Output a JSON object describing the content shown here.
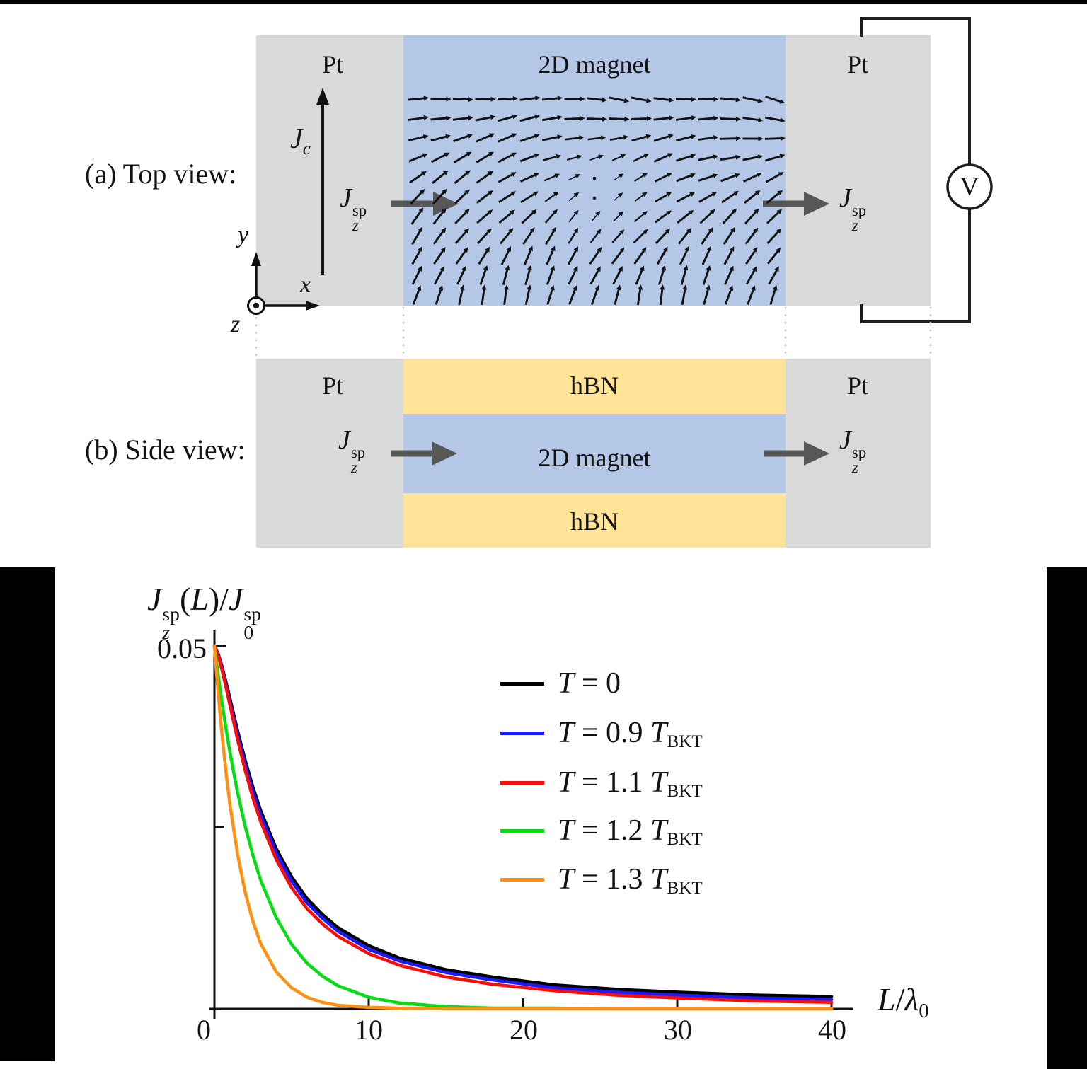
{
  "captions": {
    "a": "(a) Top view:",
    "b": "(b) Side view:"
  },
  "diagram": {
    "pt_label": "Pt",
    "magnet_label": "2D magnet",
    "hbn_label": "hBN",
    "voltmeter_label": "V",
    "math": {
      "J": "J",
      "sp": "sp",
      "z": "z",
      "c": "c"
    },
    "axes": {
      "x": "x",
      "y": "y",
      "z": "z"
    },
    "colors": {
      "pt": "#d9d9d9",
      "magnet": "#b4c7e7",
      "hbn": "#ffe498",
      "wire": "#1f1f1f",
      "spin_arrow": "#111111",
      "current_arrow": "#575757"
    },
    "spin_texture": {
      "cols": 17,
      "rows": 11,
      "note": "in-plane spin vector field with out-of-plane core dots"
    }
  },
  "chart_data": {
    "type": "line",
    "title": "",
    "ylabel": "Jz^sp(L)/J0^sp",
    "xlabel": "L/lambda_0",
    "ylabel_parts": {
      "J": "J",
      "sp": "sp",
      "z": "z",
      "open": "(",
      "L": "L",
      "close": ")/",
      "zero": "0"
    },
    "xlabel_parts": {
      "L": "L",
      "slash": "/",
      "lambda": "λ",
      "zero": "0"
    },
    "xlim": [
      0,
      40
    ],
    "ylim": [
      0,
      0.05
    ],
    "x_tick_labels": [
      "0",
      "10",
      "20",
      "30",
      "40"
    ],
    "y_tick_label": "0.05",
    "grid": false,
    "legend_position": "upper-right-inside",
    "legend_T": "T",
    "legend_eq": "=",
    "series": [
      {
        "name": "T = 0",
        "color": "#000000",
        "label_value": "0",
        "label_t2": "",
        "label_sub": "",
        "points": [
          [
            0,
            0.05
          ],
          [
            0.25,
            0.0489
          ],
          [
            0.5,
            0.0471
          ],
          [
            0.75,
            0.045
          ],
          [
            1,
            0.0428
          ],
          [
            1.5,
            0.0383
          ],
          [
            2,
            0.0342
          ],
          [
            2.5,
            0.0305
          ],
          [
            3,
            0.0273
          ],
          [
            4,
            0.0221
          ],
          [
            5,
            0.0182
          ],
          [
            6,
            0.0152
          ],
          [
            7,
            0.013
          ],
          [
            8,
            0.0112
          ],
          [
            10,
            0.0087
          ],
          [
            12,
            0.007
          ],
          [
            15,
            0.0054
          ],
          [
            18,
            0.0044
          ],
          [
            22,
            0.0033
          ],
          [
            26,
            0.0027
          ],
          [
            30,
            0.0023
          ],
          [
            35,
            0.0019
          ],
          [
            40,
            0.0017
          ]
        ]
      },
      {
        "name": "T = 0.9 T_BKT",
        "color": "#1a1aff",
        "label_value": "0.9",
        "label_t2": "T",
        "label_sub": "BKT",
        "points": [
          [
            0,
            0.05
          ],
          [
            0.25,
            0.0488
          ],
          [
            0.5,
            0.0469
          ],
          [
            0.75,
            0.0447
          ],
          [
            1,
            0.0424
          ],
          [
            1.5,
            0.0378
          ],
          [
            2,
            0.0336
          ],
          [
            2.5,
            0.0299
          ],
          [
            3,
            0.0267
          ],
          [
            4,
            0.0215
          ],
          [
            5,
            0.0176
          ],
          [
            6,
            0.0146
          ],
          [
            7,
            0.0125
          ],
          [
            8,
            0.0107
          ],
          [
            10,
            0.0082
          ],
          [
            12,
            0.0066
          ],
          [
            15,
            0.005
          ],
          [
            18,
            0.004
          ],
          [
            22,
            0.0029
          ],
          [
            26,
            0.0023
          ],
          [
            30,
            0.0019
          ],
          [
            35,
            0.0015
          ],
          [
            40,
            0.0013
          ]
        ]
      },
      {
        "name": "T = 1.1 T_BKT",
        "color": "#f90d09",
        "label_value": "1.1",
        "label_t2": "T",
        "label_sub": "BKT",
        "points": [
          [
            0,
            0.05
          ],
          [
            0.25,
            0.0487
          ],
          [
            0.5,
            0.0466
          ],
          [
            0.75,
            0.0443
          ],
          [
            1,
            0.0419
          ],
          [
            1.5,
            0.0371
          ],
          [
            2,
            0.0328
          ],
          [
            2.5,
            0.029
          ],
          [
            3,
            0.0258
          ],
          [
            4,
            0.0206
          ],
          [
            5,
            0.0167
          ],
          [
            6,
            0.0138
          ],
          [
            7,
            0.0117
          ],
          [
            8,
            0.01
          ],
          [
            10,
            0.0076
          ],
          [
            12,
            0.006
          ],
          [
            15,
            0.0044
          ],
          [
            18,
            0.0034
          ],
          [
            22,
            0.0025
          ],
          [
            26,
            0.0019
          ],
          [
            30,
            0.0015
          ],
          [
            35,
            0.0011
          ],
          [
            40,
            0.0009
          ]
        ]
      },
      {
        "name": "T = 1.2 T_BKT",
        "color": "#06dd12",
        "label_value": "1.2",
        "label_t2": "T",
        "label_sub": "BKT",
        "points": [
          [
            0,
            0.05
          ],
          [
            0.25,
            0.0459
          ],
          [
            0.5,
            0.0421
          ],
          [
            0.75,
            0.0386
          ],
          [
            1,
            0.0354
          ],
          [
            1.5,
            0.0298
          ],
          [
            2,
            0.0251
          ],
          [
            2.5,
            0.0211
          ],
          [
            3,
            0.0177
          ],
          [
            4,
            0.0126
          ],
          [
            5,
            0.0089
          ],
          [
            6,
            0.0063
          ],
          [
            7,
            0.0045
          ],
          [
            8,
            0.0032
          ],
          [
            10,
            0.0016
          ],
          [
            12,
            0.0008
          ],
          [
            15,
            0.0003
          ],
          [
            18,
            0.0001
          ],
          [
            22,
            0.0001
          ],
          [
            26,
            0
          ],
          [
            30,
            0
          ],
          [
            35,
            0
          ],
          [
            40,
            0
          ]
        ]
      },
      {
        "name": "T = 1.3 T_BKT",
        "color": "#ff9014",
        "label_value": "1.3",
        "label_t2": "T",
        "label_sub": "BKT",
        "points": [
          [
            0,
            0.05
          ],
          [
            0.25,
            0.0433
          ],
          [
            0.5,
            0.0376
          ],
          [
            0.75,
            0.0326
          ],
          [
            1,
            0.0282
          ],
          [
            1.5,
            0.0213
          ],
          [
            2,
            0.016
          ],
          [
            2.5,
            0.012
          ],
          [
            3,
            0.009
          ],
          [
            4,
            0.0051
          ],
          [
            5,
            0.0029
          ],
          [
            6,
            0.0016
          ],
          [
            7,
            0.0009
          ],
          [
            8,
            0.0005
          ],
          [
            10,
            0.0002
          ],
          [
            12,
            0.0001
          ],
          [
            15,
            0
          ],
          [
            18,
            0
          ],
          [
            22,
            0
          ],
          [
            26,
            0
          ],
          [
            30,
            0
          ],
          [
            35,
            0
          ],
          [
            40,
            0
          ]
        ]
      }
    ]
  }
}
